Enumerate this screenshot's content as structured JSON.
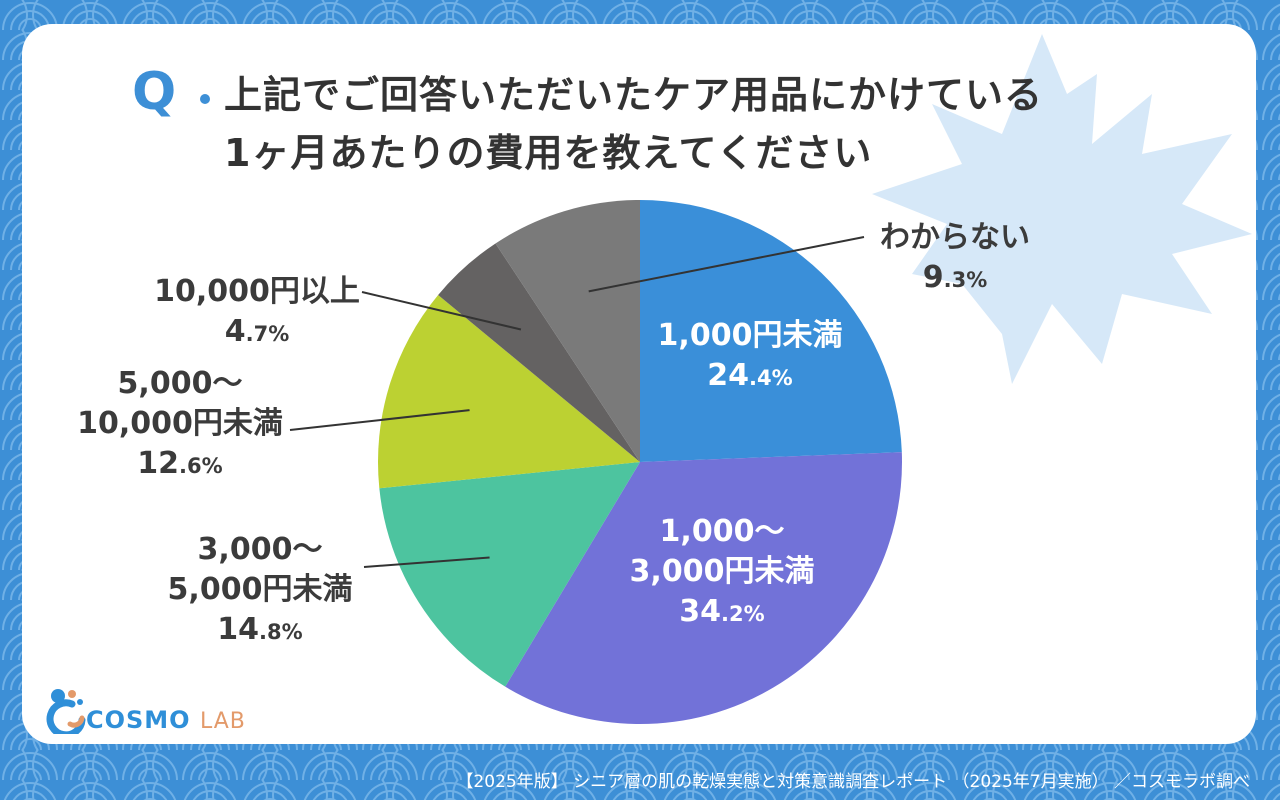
{
  "title": {
    "q_label": "Q",
    "line1": "上記でご回答いただいたケア用品にかけている",
    "line2": "1ヶ月あたりの費用を教えてください"
  },
  "chart_data": {
    "type": "pie",
    "title": "上記でご回答いただいたケア用品にかけている1ヶ月あたりの費用を教えてください",
    "start": "12 o'clock, clockwise",
    "slices": [
      {
        "label_lines": [
          "1,000円未満"
        ],
        "value": 24.4,
        "pct_int": "24",
        "pct_dec": ".4%",
        "color": "#3a8fd9"
      },
      {
        "label_lines": [
          "1,000〜",
          "3,000円未満"
        ],
        "value": 34.2,
        "pct_int": "34",
        "pct_dec": ".2%",
        "color": "#7272d8"
      },
      {
        "label_lines": [
          "3,000〜",
          "5,000円未満"
        ],
        "value": 14.8,
        "pct_int": "14",
        "pct_dec": ".8%",
        "color": "#4dc49f"
      },
      {
        "label_lines": [
          "5,000〜",
          "10,000円未満"
        ],
        "value": 12.6,
        "pct_int": "12",
        "pct_dec": ".6%",
        "color": "#bcd132"
      },
      {
        "label_lines": [
          "10,000円以上"
        ],
        "value": 4.7,
        "pct_int": "4",
        "pct_dec": ".7%",
        "color": "#646262"
      },
      {
        "label_lines": [
          "わからない"
        ],
        "value": 9.3,
        "pct_int": "9",
        "pct_dec": ".3%",
        "color": "#7a7a7a"
      }
    ]
  },
  "logo": {
    "word": "COSMO",
    "suffix": "LAB"
  },
  "footer": "【2025年版】 シニア層の肌の乾燥実態と対策意識調査レポート （2025年7月実施） ／コスモラボ調べ",
  "colors": {
    "background": "#3d8fd6",
    "accent": "#3d8fd6",
    "text": "#333333",
    "leaf": "#d6e8f8"
  }
}
